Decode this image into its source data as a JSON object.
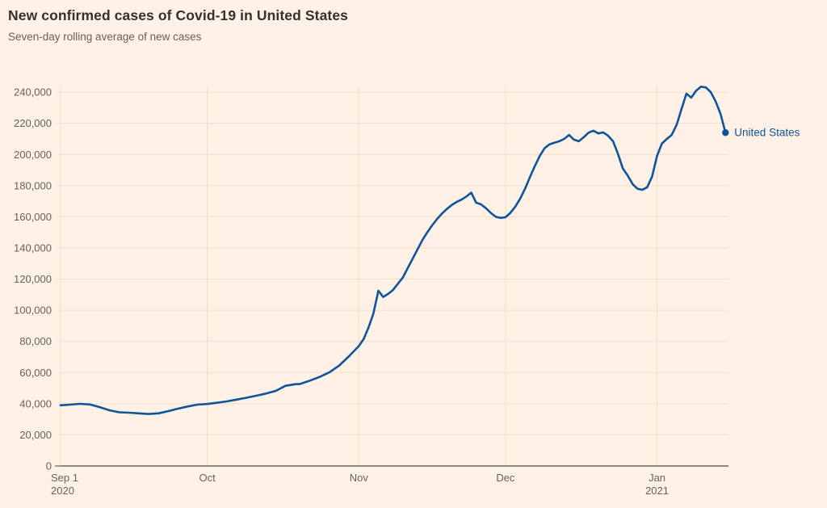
{
  "header": {
    "title": "New confirmed cases of Covid-19 in United States",
    "subtitle": "Seven-day rolling average of new cases"
  },
  "chart_data": {
    "type": "line",
    "title": "New confirmed cases of Covid-19 in United States",
    "subtitle": "Seven-day rolling average of new cases",
    "series_label": "United States",
    "grid": true,
    "legend_position": "end-of-line",
    "ylim": [
      0,
      240000
    ],
    "ytick_interval": 20000,
    "yticks": [
      {
        "value": 0,
        "label": "0"
      },
      {
        "value": 20000,
        "label": "20,000"
      },
      {
        "value": 40000,
        "label": "40,000"
      },
      {
        "value": 60000,
        "label": "60,000"
      },
      {
        "value": 80000,
        "label": "80,000"
      },
      {
        "value": 100000,
        "label": "100,000"
      },
      {
        "value": 120000,
        "label": "120,000"
      },
      {
        "value": 140000,
        "label": "140,000"
      },
      {
        "value": 160000,
        "label": "160,000"
      },
      {
        "value": 180000,
        "label": "180,000"
      },
      {
        "value": 200000,
        "label": "200,000"
      },
      {
        "value": 220000,
        "label": "220,000"
      },
      {
        "value": 240000,
        "label": "240,000"
      }
    ],
    "xticks": [
      {
        "date": "2020-09-01",
        "label": "Sep 1",
        "sublabel": "2020",
        "align": "start"
      },
      {
        "date": "2020-10-01",
        "label": "Oct",
        "sublabel": "",
        "align": "middle"
      },
      {
        "date": "2020-11-01",
        "label": "Nov",
        "sublabel": "",
        "align": "middle"
      },
      {
        "date": "2020-12-01",
        "label": "Dec",
        "sublabel": "",
        "align": "middle"
      },
      {
        "date": "2021-01-01",
        "label": "Jan",
        "sublabel": "2021",
        "align": "middle"
      }
    ],
    "x": [
      "2020-09-01",
      "2020-09-03",
      "2020-09-05",
      "2020-09-07",
      "2020-09-09",
      "2020-09-11",
      "2020-09-13",
      "2020-09-15",
      "2020-09-17",
      "2020-09-19",
      "2020-09-21",
      "2020-09-23",
      "2020-09-25",
      "2020-09-27",
      "2020-09-29",
      "2020-10-01",
      "2020-10-03",
      "2020-10-05",
      "2020-10-07",
      "2020-10-09",
      "2020-10-11",
      "2020-10-13",
      "2020-10-15",
      "2020-10-17",
      "2020-10-19",
      "2020-10-20",
      "2020-10-22",
      "2020-10-24",
      "2020-10-26",
      "2020-10-28",
      "2020-10-30",
      "2020-11-01",
      "2020-11-02",
      "2020-11-03",
      "2020-11-04",
      "2020-11-05",
      "2020-11-06",
      "2020-11-07",
      "2020-11-08",
      "2020-11-09",
      "2020-11-10",
      "2020-11-11",
      "2020-11-12",
      "2020-11-13",
      "2020-11-14",
      "2020-11-15",
      "2020-11-16",
      "2020-11-17",
      "2020-11-18",
      "2020-11-19",
      "2020-11-20",
      "2020-11-21",
      "2020-11-22",
      "2020-11-23",
      "2020-11-24",
      "2020-11-25",
      "2020-11-26",
      "2020-11-27",
      "2020-11-28",
      "2020-11-29",
      "2020-11-30",
      "2020-12-01",
      "2020-12-02",
      "2020-12-03",
      "2020-12-04",
      "2020-12-05",
      "2020-12-06",
      "2020-12-07",
      "2020-12-08",
      "2020-12-09",
      "2020-12-10",
      "2020-12-11",
      "2020-12-12",
      "2020-12-13",
      "2020-12-14",
      "2020-12-15",
      "2020-12-16",
      "2020-12-17",
      "2020-12-18",
      "2020-12-19",
      "2020-12-20",
      "2020-12-21",
      "2020-12-22",
      "2020-12-23",
      "2020-12-24",
      "2020-12-25",
      "2020-12-26",
      "2020-12-27",
      "2020-12-28",
      "2020-12-29",
      "2020-12-30",
      "2020-12-31",
      "2021-01-01",
      "2021-01-02",
      "2021-01-03",
      "2021-01-04",
      "2021-01-05",
      "2021-01-06",
      "2021-01-07",
      "2021-01-08",
      "2021-01-09",
      "2021-01-10",
      "2021-01-11",
      "2021-01-12",
      "2021-01-13",
      "2021-01-14",
      "2021-01-15"
    ],
    "values": [
      39000,
      39400,
      39900,
      39500,
      37800,
      35800,
      34500,
      34200,
      33800,
      33400,
      33800,
      35200,
      36800,
      38200,
      39400,
      39800,
      40600,
      41500,
      42600,
      43800,
      45100,
      46500,
      48200,
      51500,
      52500,
      52700,
      54800,
      57200,
      60200,
      64500,
      70500,
      77000,
      81500,
      89000,
      98000,
      112500,
      108500,
      110500,
      113000,
      117000,
      121000,
      127000,
      133000,
      139000,
      145000,
      150000,
      154500,
      158500,
      162000,
      165000,
      167500,
      169500,
      171000,
      173000,
      175500,
      169000,
      168000,
      165500,
      162500,
      160000,
      159300,
      159700,
      162500,
      166500,
      171500,
      178000,
      185500,
      192500,
      199000,
      204000,
      206500,
      207500,
      208500,
      210000,
      212500,
      209500,
      208500,
      211000,
      214000,
      215200,
      213500,
      214200,
      212000,
      208500,
      200500,
      191000,
      186500,
      181000,
      178000,
      177300,
      179000,
      186000,
      199000,
      207000,
      210000,
      212500,
      219000,
      229000,
      239000,
      236500,
      241000,
      243500,
      243000,
      240000,
      234000,
      226000,
      214000
    ],
    "colors": {
      "background": "#FFF1E5",
      "line": "#0F5499",
      "grid": "#F0DCC9",
      "axis": "#66605C",
      "tick_text": "#66605C",
      "title": "#33302E",
      "subtitle": "#66605C"
    }
  }
}
